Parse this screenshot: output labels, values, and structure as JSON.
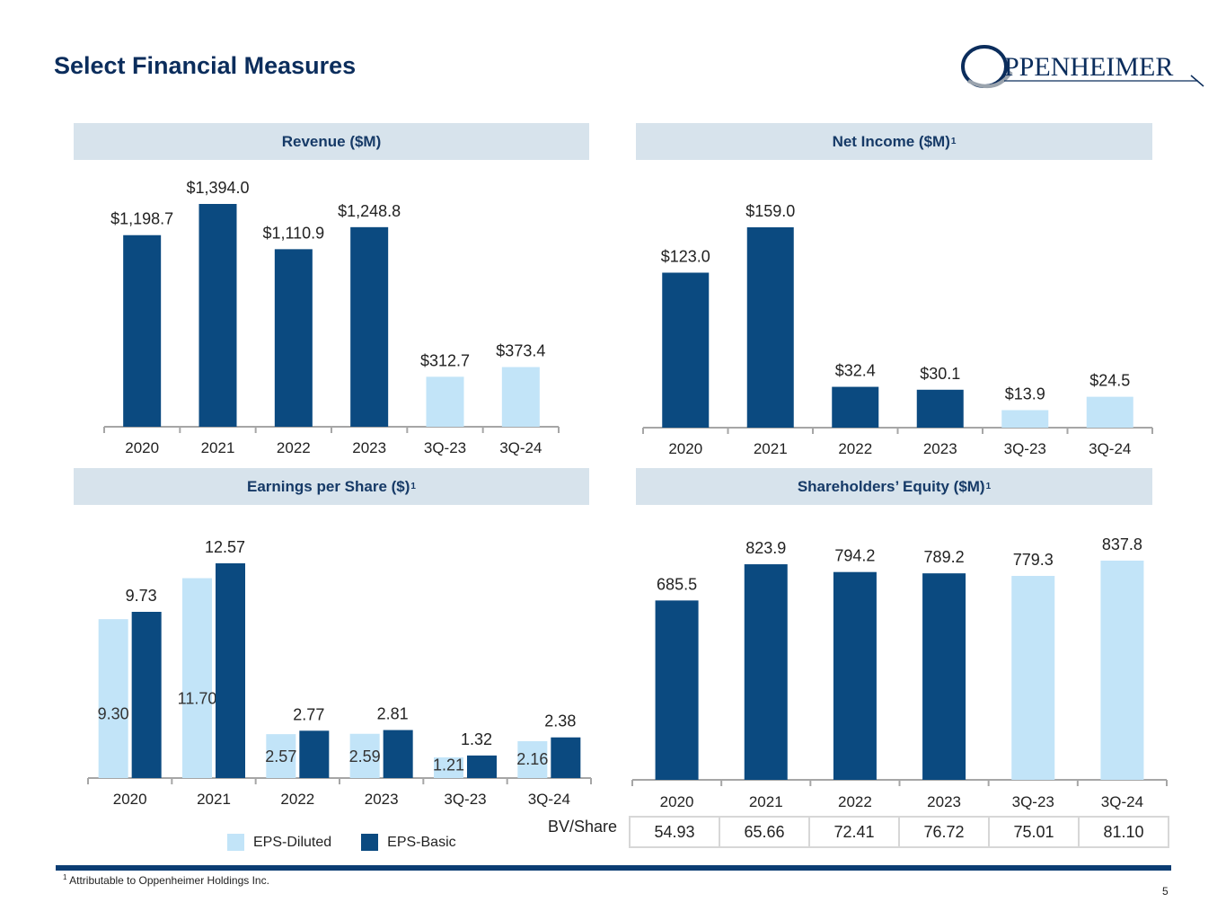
{
  "title": "Select Financial Measures",
  "logo": {
    "text": "PPENHEIMER",
    "initial": "O"
  },
  "colors": {
    "dark": "#0b4a80",
    "light": "#c2e4f8",
    "header_bg": "#d7e3ec",
    "title": "#0b2d5c"
  },
  "chart_data": [
    {
      "type": "bar",
      "title": "Revenue ($M)",
      "categories": [
        "2020",
        "2021",
        "2022",
        "2023",
        "3Q-23",
        "3Q-24"
      ],
      "values": [
        1198.7,
        1394.0,
        1110.9,
        1248.8,
        312.7,
        373.4
      ],
      "labels": [
        "$1,198.7",
        "$1,394.0",
        "$1,110.9",
        "$1,248.8",
        "$312.7",
        "$373.4"
      ],
      "shades": [
        "dark",
        "dark",
        "dark",
        "dark",
        "light",
        "light"
      ],
      "ylim": [
        0,
        1394.0
      ]
    },
    {
      "type": "bar",
      "title": "Net Income ($M)",
      "title_sup": "1",
      "categories": [
        "2020",
        "2021",
        "2022",
        "2023",
        "3Q-23",
        "3Q-24"
      ],
      "values": [
        123.0,
        159.0,
        32.4,
        30.1,
        13.9,
        24.5
      ],
      "labels": [
        "$123.0",
        "$159.0",
        "$32.4",
        "$30.1",
        "$13.9",
        "$24.5"
      ],
      "shades": [
        "dark",
        "dark",
        "dark",
        "dark",
        "light",
        "light"
      ],
      "ylim": [
        0,
        159.0
      ]
    },
    {
      "type": "bar",
      "title": "Earnings per Share ($)",
      "title_sup": "1",
      "categories": [
        "2020",
        "2021",
        "2022",
        "2023",
        "3Q-23",
        "3Q-24"
      ],
      "series": [
        {
          "name": "EPS-Diluted",
          "shade": "light",
          "values": [
            9.3,
            11.7,
            2.57,
            2.59,
            1.21,
            2.16
          ],
          "labels": [
            "9.30",
            "11.70",
            "2.57",
            "2.59",
            "1.21",
            "2.16"
          ]
        },
        {
          "name": "EPS-Basic",
          "shade": "dark",
          "values": [
            9.73,
            12.57,
            2.77,
            2.81,
            1.32,
            2.38
          ],
          "labels": [
            "9.73",
            "12.57",
            "2.77",
            "2.81",
            "1.32",
            "2.38"
          ]
        }
      ],
      "ylim": [
        0,
        12.57
      ]
    },
    {
      "type": "bar",
      "title": "Shareholders’ Equity ($M)",
      "title_sup": "1",
      "categories": [
        "2020",
        "2021",
        "2022",
        "2023",
        "3Q-23",
        "3Q-24"
      ],
      "values": [
        685.5,
        823.9,
        794.2,
        789.2,
        779.3,
        837.8
      ],
      "labels": [
        "685.5",
        "823.9",
        "794.2",
        "789.2",
        "779.3",
        "837.8"
      ],
      "shades": [
        "dark",
        "dark",
        "dark",
        "dark",
        "light",
        "light"
      ],
      "ylim": [
        0,
        837.8
      ]
    }
  ],
  "bv_share": {
    "label": "BV/Share",
    "values": [
      "54.93",
      "65.66",
      "72.41",
      "76.72",
      "75.01",
      "81.10"
    ]
  },
  "legend": [
    {
      "label": "EPS-Diluted",
      "shade": "light"
    },
    {
      "label": "EPS-Basic",
      "shade": "dark"
    }
  ],
  "footnote": {
    "sup": "1",
    "text": "Attributable to Oppenheimer Holdings Inc."
  },
  "page_number": "5"
}
